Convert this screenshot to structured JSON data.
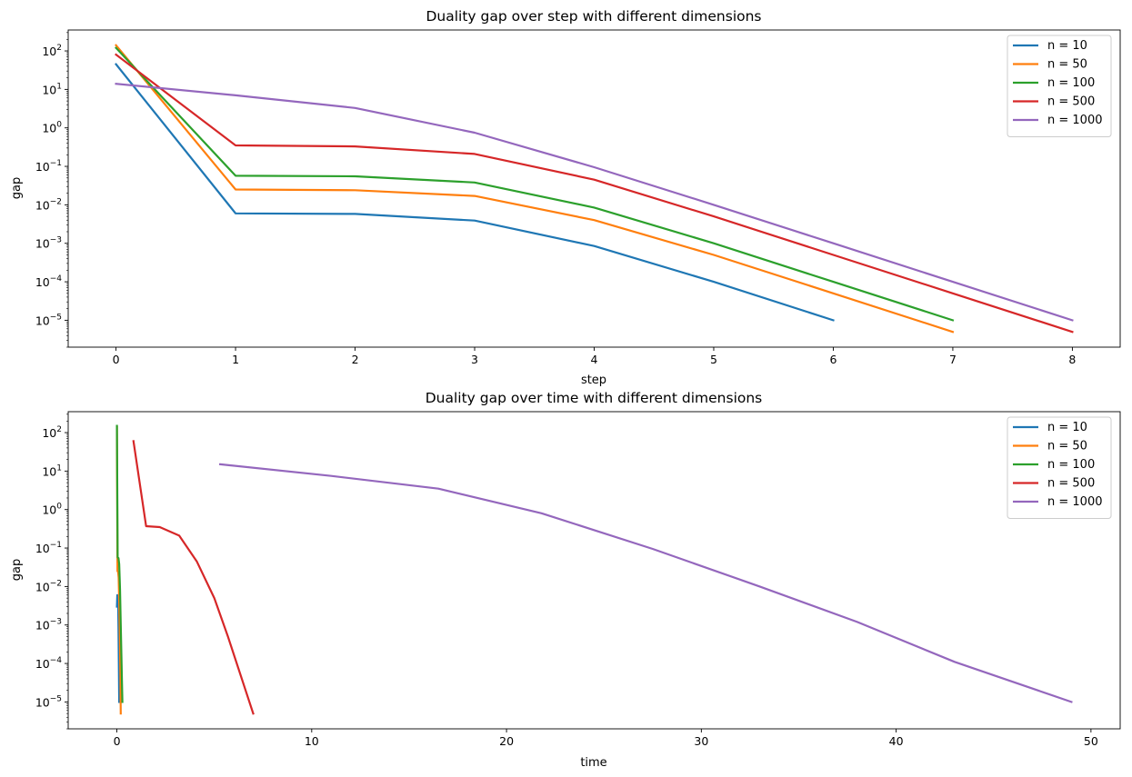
{
  "figure": {
    "background": "#ffffff"
  },
  "chart_data": [
    {
      "type": "line",
      "title": "Duality gap over step with different dimensions",
      "xlabel": "step",
      "ylabel": "gap",
      "xscale": "linear",
      "yscale": "log",
      "xlim": [
        -0.4,
        8.4
      ],
      "ylim": [
        2e-06,
        350
      ],
      "xticks": [
        0,
        1,
        2,
        3,
        4,
        5,
        6,
        7,
        8
      ],
      "xtick_labels": [
        "0",
        "1",
        "2",
        "3",
        "4",
        "5",
        "6",
        "7",
        "8"
      ],
      "yticks": [
        1e-05,
        0.0001,
        0.001,
        0.01,
        0.1,
        1,
        10,
        100
      ],
      "ytick_labels": [
        {
          "base": "10",
          "exp": "−5"
        },
        {
          "base": "10",
          "exp": "−4"
        },
        {
          "base": "10",
          "exp": "−3"
        },
        {
          "base": "10",
          "exp": "−2"
        },
        {
          "base": "10",
          "exp": "−1"
        },
        {
          "base": "10",
          "exp": "0"
        },
        {
          "base": "10",
          "exp": "1"
        },
        {
          "base": "10",
          "exp": "2"
        }
      ],
      "grid": false,
      "legend_position": "top-right",
      "series": [
        {
          "name": "n = 10",
          "color": "#1f77b4",
          "x": [
            0,
            1,
            2,
            3,
            4,
            5,
            6
          ],
          "y": [
            45,
            0.006,
            0.0058,
            0.0039,
            0.00085,
            0.0001,
            1e-05
          ]
        },
        {
          "name": "n = 50",
          "color": "#ff7f0e",
          "x": [
            0,
            1,
            2,
            3,
            4,
            5,
            6,
            7
          ],
          "y": [
            140,
            0.025,
            0.024,
            0.017,
            0.004,
            0.0005,
            5e-05,
            5e-06
          ]
        },
        {
          "name": "n = 100",
          "color": "#2ca02c",
          "x": [
            0,
            1,
            2,
            3,
            4,
            5,
            6,
            7
          ],
          "y": [
            120,
            0.057,
            0.055,
            0.038,
            0.0085,
            0.001,
            0.0001,
            1e-05
          ]
        },
        {
          "name": "n = 500",
          "color": "#d62728",
          "x": [
            0,
            1,
            2,
            3,
            4,
            5,
            6,
            7,
            8
          ],
          "y": [
            80,
            0.35,
            0.33,
            0.21,
            0.045,
            0.005,
            0.0005,
            5e-05,
            5e-06
          ]
        },
        {
          "name": "n = 1000",
          "color": "#9467bd",
          "x": [
            0,
            1,
            2,
            3,
            4,
            5,
            6,
            7,
            8
          ],
          "y": [
            14,
            7,
            3.3,
            0.75,
            0.095,
            0.01,
            0.001,
            0.0001,
            1e-05
          ]
        }
      ]
    },
    {
      "type": "line",
      "title": "Duality gap over time with different dimensions",
      "xlabel": "time",
      "ylabel": "gap",
      "xscale": "linear",
      "yscale": "log",
      "xlim": [
        -2.5,
        51.5
      ],
      "ylim": [
        2e-06,
        350
      ],
      "xticks": [
        0,
        10,
        20,
        30,
        40,
        50
      ],
      "xtick_labels": [
        "0",
        "10",
        "20",
        "30",
        "40",
        "50"
      ],
      "yticks": [
        1e-05,
        0.0001,
        0.001,
        0.01,
        0.1,
        1,
        10,
        100
      ],
      "ytick_labels": [
        {
          "base": "10",
          "exp": "−5"
        },
        {
          "base": "10",
          "exp": "−4"
        },
        {
          "base": "10",
          "exp": "−3"
        },
        {
          "base": "10",
          "exp": "−2"
        },
        {
          "base": "10",
          "exp": "−1"
        },
        {
          "base": "10",
          "exp": "0"
        },
        {
          "base": "10",
          "exp": "1"
        },
        {
          "base": "10",
          "exp": "2"
        }
      ],
      "grid": false,
      "legend_position": "top-right",
      "series": [
        {
          "name": "n = 10",
          "color": "#1f77b4",
          "x": [
            0.0,
            0.02,
            0.04,
            0.06,
            0.08,
            0.1,
            0.12
          ],
          "y": [
            0.003,
            0.006,
            0.0058,
            0.0039,
            0.00085,
            0.0001,
            1e-05
          ]
        },
        {
          "name": "n = 50",
          "color": "#ff7f0e",
          "x": [
            0.0,
            0.03,
            0.06,
            0.09,
            0.12,
            0.15,
            0.18,
            0.2
          ],
          "y": [
            140,
            0.025,
            0.024,
            0.017,
            0.004,
            0.0005,
            5e-05,
            5e-06
          ]
        },
        {
          "name": "n = 100",
          "color": "#2ca02c",
          "x": [
            0.0,
            0.04,
            0.08,
            0.12,
            0.16,
            0.2,
            0.24,
            0.28
          ],
          "y": [
            150,
            0.057,
            0.055,
            0.038,
            0.0085,
            0.001,
            0.0001,
            1e-05
          ]
        },
        {
          "name": "n = 500",
          "color": "#d62728",
          "x": [
            0.85,
            1.5,
            2.2,
            3.2,
            4.1,
            5.0,
            5.7,
            7.0
          ],
          "y": [
            60,
            0.37,
            0.35,
            0.21,
            0.045,
            0.005,
            0.0005,
            5e-06
          ]
        },
        {
          "name": "n = 1000",
          "color": "#9467bd",
          "x": [
            5.3,
            11.0,
            16.5,
            21.8,
            27.5,
            33.0,
            38.0,
            43.0,
            49.0
          ],
          "y": [
            15,
            7.5,
            3.5,
            0.8,
            0.095,
            0.01,
            0.0012,
            0.00011,
            1e-05
          ]
        }
      ]
    }
  ]
}
